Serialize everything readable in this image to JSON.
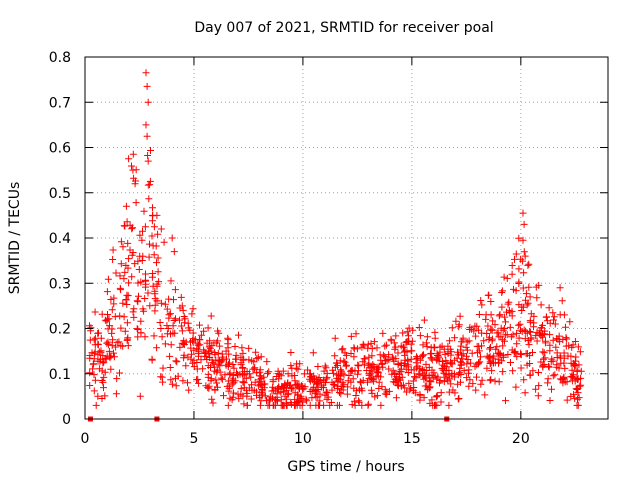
{
  "chart_data": {
    "type": "scatter",
    "title": "Day 007 of 2021, SRMTID for receiver poal",
    "xlabel": "GPS time / hours",
    "ylabel": "SRMTID / TECUs",
    "xlim": [
      0,
      24
    ],
    "ylim": [
      0,
      0.8
    ],
    "xticks": [
      0,
      5,
      10,
      15,
      20
    ],
    "yticks": [
      0,
      0.1,
      0.2,
      0.3,
      0.4,
      0.5,
      0.6,
      0.7,
      0.8
    ],
    "xtick_labels": [
      "0",
      "5",
      "10",
      "15",
      "20"
    ],
    "ytick_labels": [
      "0",
      "0.1",
      "0.2",
      "0.3",
      "0.4",
      "0.5",
      "0.6",
      "0.7",
      "0.8"
    ],
    "grid": true,
    "marker": "+",
    "color": "#ff0000",
    "zero_markers": [
      0.25,
      3.3,
      16.6
    ],
    "series": [
      {
        "name": "SRMTID",
        "profile": [
          {
            "x": 0.2,
            "y": 0.14
          },
          {
            "x": 0.5,
            "y": 0.12
          },
          {
            "x": 1.0,
            "y": 0.18
          },
          {
            "x": 1.5,
            "y": 0.22
          },
          {
            "x": 2.0,
            "y": 0.3
          },
          {
            "x": 2.3,
            "y": 0.4
          },
          {
            "x": 2.6,
            "y": 0.28
          },
          {
            "x": 3.0,
            "y": 0.38
          },
          {
            "x": 3.3,
            "y": 0.3
          },
          {
            "x": 3.8,
            "y": 0.2
          },
          {
            "x": 4.2,
            "y": 0.22
          },
          {
            "x": 5.0,
            "y": 0.15
          },
          {
            "x": 6.0,
            "y": 0.12
          },
          {
            "x": 7.0,
            "y": 0.09
          },
          {
            "x": 8.0,
            "y": 0.08
          },
          {
            "x": 9.0,
            "y": 0.07
          },
          {
            "x": 10.0,
            "y": 0.07
          },
          {
            "x": 11.0,
            "y": 0.08
          },
          {
            "x": 12.0,
            "y": 0.1
          },
          {
            "x": 13.0,
            "y": 0.1
          },
          {
            "x": 14.0,
            "y": 0.12
          },
          {
            "x": 15.0,
            "y": 0.12
          },
          {
            "x": 16.0,
            "y": 0.11
          },
          {
            "x": 17.0,
            "y": 0.13
          },
          {
            "x": 18.0,
            "y": 0.15
          },
          {
            "x": 19.0,
            "y": 0.16
          },
          {
            "x": 19.5,
            "y": 0.2
          },
          {
            "x": 20.1,
            "y": 0.27
          },
          {
            "x": 20.5,
            "y": 0.17
          },
          {
            "x": 21.0,
            "y": 0.16
          },
          {
            "x": 21.8,
            "y": 0.15
          },
          {
            "x": 22.5,
            "y": 0.1
          },
          {
            "x": 22.8,
            "y": 0.09
          }
        ],
        "points": [
          {
            "x": 2.0,
            "y": 0.575
          },
          {
            "x": 2.2,
            "y": 0.55
          },
          {
            "x": 2.3,
            "y": 0.52
          },
          {
            "x": 2.8,
            "y": 0.765
          },
          {
            "x": 2.85,
            "y": 0.735
          },
          {
            "x": 2.9,
            "y": 0.7
          },
          {
            "x": 2.8,
            "y": 0.65
          },
          {
            "x": 2.85,
            "y": 0.625
          },
          {
            "x": 2.9,
            "y": 0.57
          },
          {
            "x": 3.0,
            "y": 0.525
          },
          {
            "x": 1.9,
            "y": 0.47
          },
          {
            "x": 3.1,
            "y": 0.45
          },
          {
            "x": 3.3,
            "y": 0.45
          },
          {
            "x": 3.5,
            "y": 0.42
          },
          {
            "x": 4.0,
            "y": 0.4
          },
          {
            "x": 4.1,
            "y": 0.37
          },
          {
            "x": 20.1,
            "y": 0.455
          },
          {
            "x": 20.15,
            "y": 0.43
          },
          {
            "x": 20.1,
            "y": 0.395
          },
          {
            "x": 20.2,
            "y": 0.36
          },
          {
            "x": 19.6,
            "y": 0.32
          },
          {
            "x": 21.8,
            "y": 0.29
          },
          {
            "x": 22.0,
            "y": 0.23
          }
        ]
      }
    ]
  }
}
